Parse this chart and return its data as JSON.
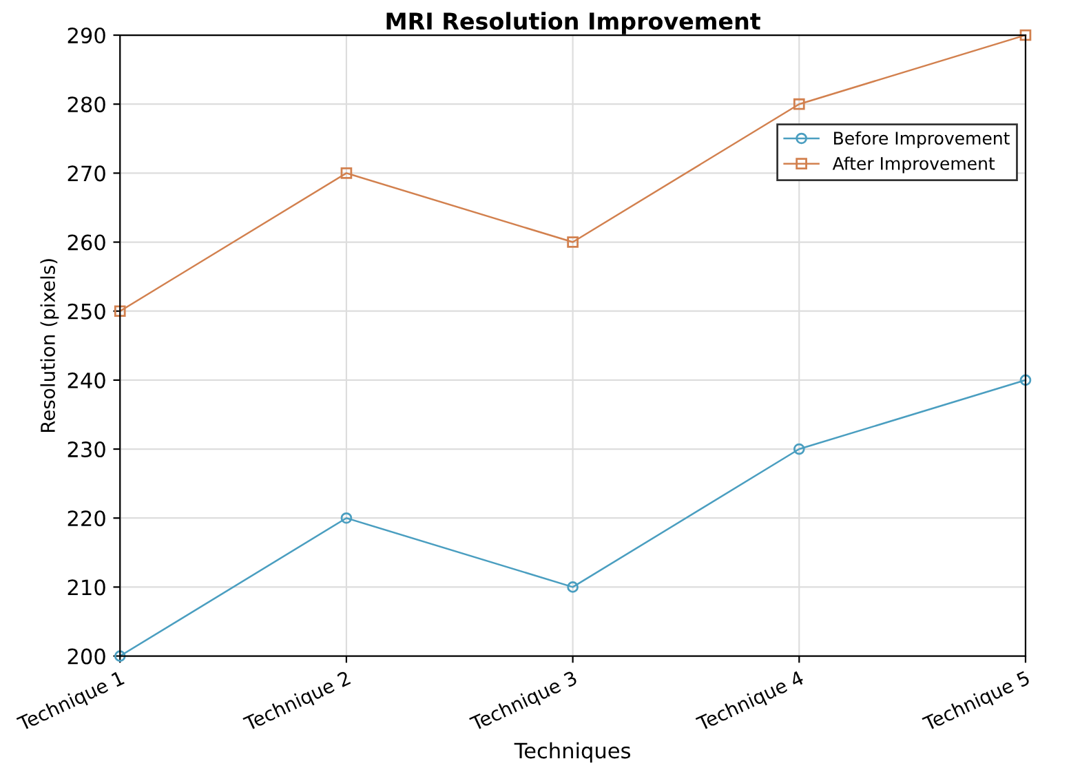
{
  "chart_data": {
    "type": "line",
    "title": "MRI Resolution Improvement",
    "xlabel": "Techniques",
    "ylabel": "Resolution (pixels)",
    "categories": [
      "Technique 1",
      "Technique 2",
      "Technique 3",
      "Technique 4",
      "Technique 5"
    ],
    "series": [
      {
        "name": "Before Improvement",
        "color": "#4a9ec0",
        "marker": "circle",
        "values": [
          200,
          220,
          210,
          230,
          240
        ]
      },
      {
        "name": "After Improvement",
        "color": "#d2804e",
        "marker": "square",
        "values": [
          250,
          270,
          260,
          280,
          290
        ]
      }
    ],
    "ylim": [
      200,
      290
    ],
    "yticks": [
      200,
      210,
      220,
      230,
      240,
      250,
      260,
      270,
      280,
      290
    ],
    "grid": true,
    "legend": "top right",
    "line_style": "solid"
  }
}
